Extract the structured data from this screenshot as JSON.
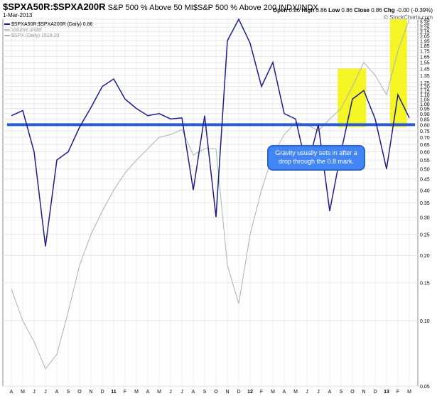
{
  "header": {
    "symbol": "$SPXA50R:$SPXA200R",
    "description": "S&P 500 % Above 50 MI$S&P 500 % Above 200 INDX/INDX",
    "date": "1-Mar-2013",
    "open_label": "Open",
    "open": "0.86",
    "high_label": "High",
    "high": "0.86",
    "low_label": "Low",
    "low": "0.86",
    "close_label": "Close",
    "close": "0.86",
    "chg_label": "Chg",
    "chg": "-0.00 (-0.39%)",
    "watermark": "© StockCharts.com"
  },
  "legend": {
    "series1": "$SPXA50R:$SPXA200R (Daily) 0.86",
    "series2": "Volume undef",
    "series3": "$SPX (Daily) 1518.20"
  },
  "annotation": {
    "text": "Gravity usually sets in after a drop through the 0.8 mark."
  },
  "colors": {
    "ratio_line": "#1a1e8c",
    "spx_line": "#a9b2b8",
    "horizontal_line": "#2a5bd7",
    "highlight": "#f5f500",
    "annotation_bg": "#4285f4"
  },
  "chart_data": {
    "type": "line",
    "y_scale": "log",
    "ylim": [
      0.05,
      2.45
    ],
    "y_ticks": [
      "2.45",
      "2.35",
      "2.25",
      "2.15",
      "2.05",
      "1.95",
      "1.85",
      "1.75",
      "1.65",
      "1.55",
      "1.45",
      "1.35",
      "1.25",
      "1.20",
      "1.15",
      "1.10",
      "1.05",
      "1.00",
      "0.95",
      "0.90",
      "0.85",
      "0.80",
      "0.75",
      "0.70",
      "0.65",
      "0.60",
      "0.55",
      "0.50",
      "0.45",
      "0.40",
      "0.35",
      "0.30",
      "0.25",
      "0.20",
      "0.15",
      "0.10",
      "0.05"
    ],
    "x_tick_labels": [
      "A",
      "M",
      "J",
      "J",
      "A",
      "S",
      "O",
      "N",
      "D",
      "11",
      "F",
      "M",
      "A",
      "M",
      "J",
      "J",
      "A",
      "S",
      "O",
      "N",
      "D",
      "12",
      "F",
      "M",
      "A",
      "M",
      "J",
      "J",
      "A",
      "S",
      "O",
      "N",
      "D",
      "13",
      "F",
      "M"
    ],
    "reference_line": 0.8,
    "series": [
      {
        "name": "$SPXA50R:$SPXA200R (Daily) 0.86",
        "x": [
          0,
          1,
          2,
          3,
          4,
          5,
          6,
          7,
          8,
          9,
          10,
          11,
          12,
          13,
          14,
          15,
          16,
          17,
          18,
          19,
          20,
          21,
          22,
          23,
          24,
          25,
          26,
          27,
          28,
          29,
          30,
          31,
          32,
          33,
          34,
          35
        ],
        "values": [
          0.88,
          0.93,
          0.6,
          0.22,
          0.55,
          0.6,
          0.78,
          0.96,
          1.2,
          1.3,
          1.05,
          0.95,
          0.88,
          0.9,
          0.85,
          0.86,
          0.4,
          0.88,
          0.3,
          1.95,
          2.45,
          1.9,
          1.2,
          1.55,
          0.9,
          0.85,
          0.5,
          0.8,
          0.32,
          0.6,
          1.05,
          1.15,
          0.85,
          0.5,
          1.1,
          0.86
        ]
      },
      {
        "name": "$SPX (Daily) 1518.20",
        "x": [
          0,
          1,
          2,
          3,
          4,
          5,
          6,
          7,
          8,
          9,
          10,
          11,
          12,
          13,
          14,
          15,
          16,
          17,
          18,
          19,
          20,
          21,
          22,
          23,
          24,
          25,
          26,
          27,
          28,
          29,
          30,
          31,
          32,
          33,
          34,
          35
        ],
        "values": [
          0.14,
          0.1,
          0.08,
          0.06,
          0.07,
          0.11,
          0.18,
          0.25,
          0.32,
          0.4,
          0.48,
          0.55,
          0.62,
          0.7,
          0.72,
          0.76,
          0.58,
          0.62,
          0.62,
          0.18,
          0.12,
          0.25,
          0.4,
          0.58,
          0.72,
          0.82,
          0.8,
          0.75,
          0.85,
          0.95,
          1.2,
          1.55,
          1.35,
          1.1,
          1.75,
          2.45
        ]
      }
    ],
    "highlights": [
      {
        "x_from": 28.7,
        "x_to": 31.2,
        "y_from": 0.78,
        "y_to": 1.45
      },
      {
        "x_from": 33.3,
        "x_to": 34.8,
        "y_from": 0.78,
        "y_to": 2.45
      }
    ]
  }
}
